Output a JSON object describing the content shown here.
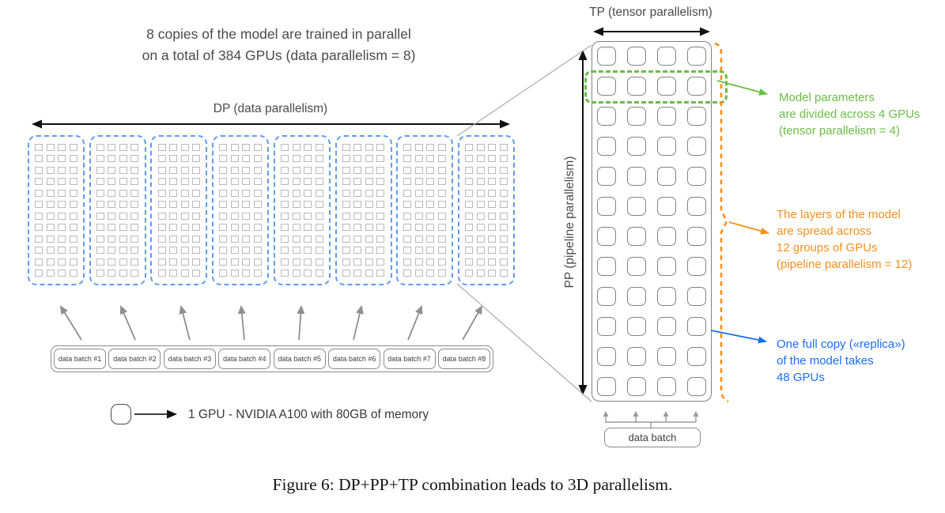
{
  "figure": {
    "caption": "Figure 6: DP+PP+TP combination leads to 3D parallelism."
  },
  "colors": {
    "replica_dash_blue": "#5f9bf2",
    "annotation_green": "#6abd45",
    "annotation_orange": "#f78f1e",
    "annotation_blue": "#1a6ef5",
    "gpu_square_gray": "#b9b9b9",
    "outline_gray": "#828282",
    "text_gray": "#4b4b4b"
  },
  "left": {
    "title_line1": "8 copies of the model are trained in parallel",
    "title_line2": "on a total of 384 GPUs (data parallelism = 8)",
    "dp_label": "DP (data parallelism)",
    "replica_count": 8,
    "replica_grid": {
      "cols": 4,
      "rows": 12
    },
    "data_batches": [
      "data batch #1",
      "data batch #2",
      "data batch #3",
      "data batch #4",
      "data batch #5",
      "data batch #6",
      "data batch #7",
      "data batch #8"
    ],
    "legend_label": "1 GPU - NVIDIA A100 with 80GB of memory"
  },
  "right": {
    "tp_label": "TP (tensor parallelism)",
    "pp_label": "PP (pipeline parallelism)",
    "grid": {
      "cols": 4,
      "rows": 12
    },
    "data_batch_label": "data batch",
    "annotations": {
      "green": {
        "lines": [
          "Model parameters",
          "are divided across 4 GPUs",
          "(tensor parallelism = 4)"
        ]
      },
      "orange": {
        "lines": [
          "The layers of the model",
          "are spread across",
          "12 groups of GPUs",
          "(pipeline parallelism = 12)"
        ]
      },
      "blue": {
        "lines": [
          "One full copy («replica»)",
          "of the model takes",
          "48 GPUs"
        ]
      }
    }
  }
}
